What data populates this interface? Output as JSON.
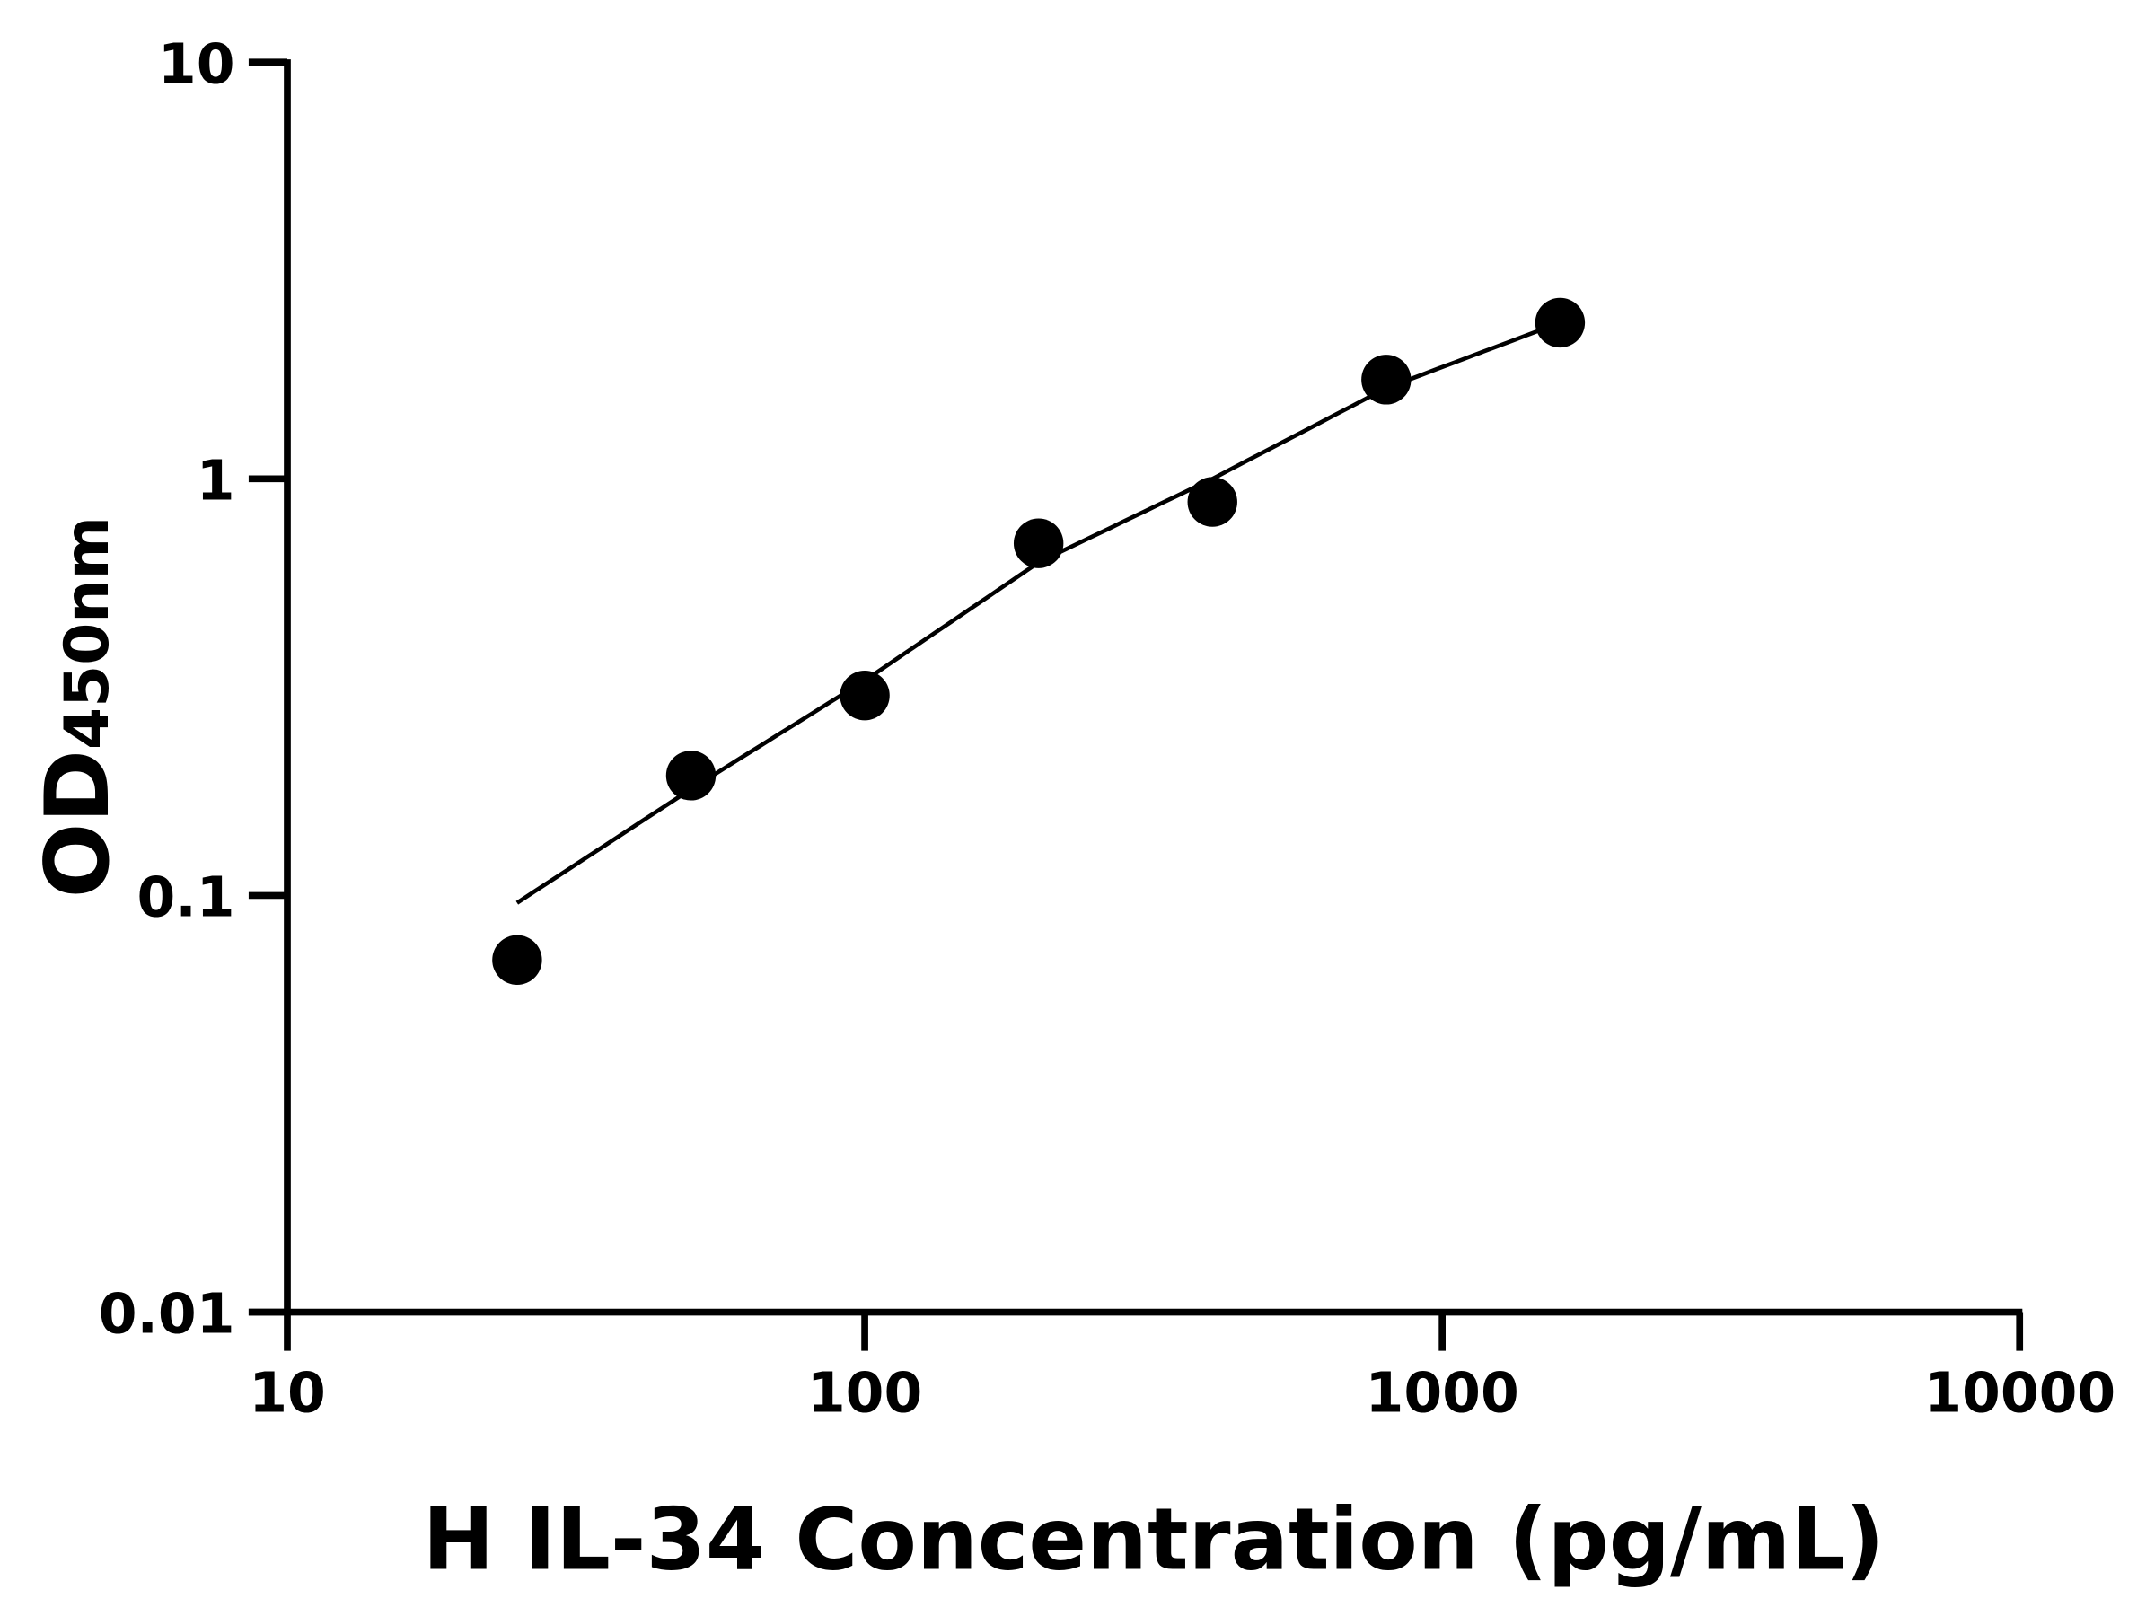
{
  "chart_data": {
    "type": "scatter",
    "title": "",
    "xlabel": "H IL-34 Concentration (pg/mL)",
    "ylabel_main": "OD",
    "ylabel_sub": "450nm",
    "x_scale": "log",
    "y_scale": "log",
    "xlim": [
      10,
      10000
    ],
    "ylim": [
      0.01,
      10
    ],
    "x_ticks": [
      10,
      100,
      1000,
      10000
    ],
    "x_tick_labels": [
      "10",
      "100",
      "1000",
      "10000"
    ],
    "y_ticks": [
      0.01,
      0.1,
      1,
      10
    ],
    "y_tick_labels": [
      "0.01",
      "0.1",
      "1",
      "10"
    ],
    "grid": false,
    "legend": "none",
    "points": {
      "x": [
        25,
        50,
        100,
        200,
        400,
        800,
        1600
      ],
      "y": [
        0.07,
        0.194,
        0.302,
        0.7,
        0.88,
        1.73,
        2.37
      ]
    },
    "fit_curve": {
      "x": [
        25,
        50,
        100,
        200,
        400,
        800,
        1600
      ],
      "y": [
        0.096,
        0.18,
        0.328,
        0.63,
        1.0,
        1.65,
        2.37
      ]
    },
    "colors": {
      "points": "#000000",
      "curve": "#000000",
      "axes": "#000000"
    }
  }
}
